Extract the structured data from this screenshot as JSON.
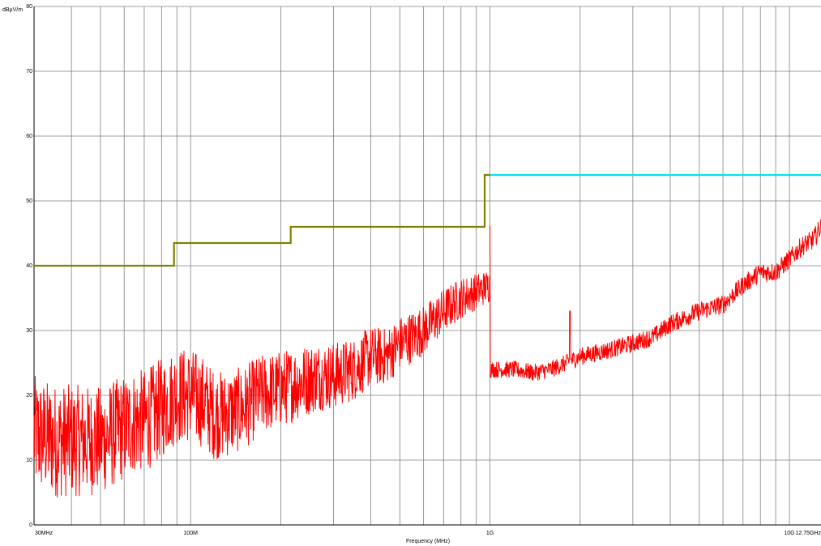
{
  "chart_data": {
    "type": "line",
    "xlabel": "Frequency (MHz)",
    "ylabel": "dBµV/m",
    "x_scale": "log",
    "xlim_mhz": [
      30,
      12750
    ],
    "ylim": [
      0,
      80
    ],
    "grid": true,
    "y_ticks": [
      0,
      10,
      20,
      30,
      40,
      50,
      60,
      70,
      80
    ],
    "y_tick_labels": [
      "0",
      "10",
      "20",
      "30",
      "40",
      "50",
      "60",
      "70",
      "80"
    ],
    "x_tick_labels": [
      {
        "value_mhz": 30,
        "label": "30MHz"
      },
      {
        "value_mhz": 100,
        "label": "100M"
      },
      {
        "value_mhz": 1000,
        "label": "1G"
      },
      {
        "value_mhz": 10000,
        "label": "10G"
      },
      {
        "value_mhz": 12750,
        "label": "12.75GHz"
      }
    ],
    "series": [
      {
        "color": "#808000",
        "style": "step",
        "segments": [
          {
            "x": [
              30,
              88
            ],
            "y": 40
          },
          {
            "x": [
              88,
              216
            ],
            "y": 43.5
          },
          {
            "x": [
              216,
              960
            ],
            "y": 46
          },
          {
            "x": [
              960,
              1000
            ],
            "y": 54
          }
        ]
      },
      {
        "color": "#00e5ee",
        "style": "step",
        "segments": [
          {
            "x": [
              1000,
              12750
            ],
            "y": 54
          }
        ]
      },
      {
        "color": "#ff0000",
        "style": "noisy-trace",
        "points": [
          [
            30,
            14
          ],
          [
            35,
            13
          ],
          [
            40,
            13
          ],
          [
            45,
            13
          ],
          [
            50,
            13
          ],
          [
            55,
            14
          ],
          [
            60,
            15
          ],
          [
            65,
            16
          ],
          [
            70,
            16
          ],
          [
            75,
            17
          ],
          [
            80,
            18
          ],
          [
            90,
            20
          ],
          [
            100,
            20
          ],
          [
            110,
            19
          ],
          [
            120,
            17
          ],
          [
            130,
            17
          ],
          [
            150,
            18
          ],
          [
            170,
            20
          ],
          [
            200,
            21
          ],
          [
            230,
            22
          ],
          [
            270,
            23
          ],
          [
            300,
            23
          ],
          [
            350,
            24
          ],
          [
            400,
            26
          ],
          [
            450,
            26
          ],
          [
            500,
            28
          ],
          [
            600,
            30
          ],
          [
            700,
            33
          ],
          [
            800,
            35
          ],
          [
            900,
            36
          ],
          [
            1000,
            37
          ]
        ],
        "noise_amplitude": [
          [
            30,
            7
          ],
          [
            80,
            6
          ],
          [
            150,
            5
          ],
          [
            300,
            4
          ],
          [
            600,
            3
          ],
          [
            1000,
            2
          ]
        ]
      },
      {
        "color": "#ff0000",
        "style": "noisy-trace",
        "points": [
          [
            1000,
            24
          ],
          [
            1200,
            24
          ],
          [
            1400,
            23.5
          ],
          [
            1600,
            24
          ],
          [
            1800,
            25
          ],
          [
            2000,
            26
          ],
          [
            2500,
            27
          ],
          [
            3000,
            28
          ],
          [
            3500,
            29
          ],
          [
            4000,
            31
          ],
          [
            5000,
            33
          ],
          [
            6000,
            34
          ],
          [
            7000,
            37
          ],
          [
            8000,
            39
          ],
          [
            9000,
            39
          ],
          [
            10000,
            41
          ],
          [
            11000,
            43
          ],
          [
            12000,
            44
          ],
          [
            12750,
            46
          ]
        ],
        "noise_amplitude": [
          [
            1000,
            1
          ],
          [
            12750,
            1.2
          ]
        ],
        "spikes": [
          {
            "x": 1850,
            "y": 33
          }
        ]
      }
    ]
  }
}
